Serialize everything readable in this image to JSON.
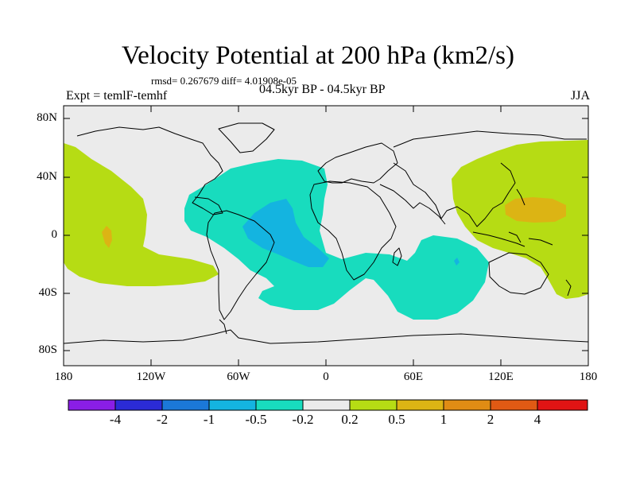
{
  "title": "Velocity Potential at 200 hPa (km2/s)",
  "stats": "rmsd= 0.267679  diff= 4.01908e-05",
  "experiment": "Expt = temlF-temhf",
  "period": "04.5kyr BP - 04.5kyr BP",
  "season": "JJA",
  "map": {
    "lon_ticks": [
      "180",
      "120W",
      "60W",
      "0",
      "60E",
      "120E",
      "180"
    ],
    "lat_ticks": [
      "80N",
      "40N",
      "0",
      "40S",
      "80S"
    ]
  },
  "colorbar": {
    "labels": [
      "-4",
      "-2",
      "-1",
      "-0.5",
      "-0.2",
      "0.2",
      "0.5",
      "1",
      "2",
      "4"
    ],
    "colors": [
      "#8a1ee6",
      "#2b2bd6",
      "#1b78d8",
      "#14b4e0",
      "#18dcbe",
      "#ebebeb",
      "#b6dc14",
      "#dcb414",
      "#e08c14",
      "#e05a14",
      "#e01414"
    ]
  },
  "colors": {
    "ocean": "#ebebeb",
    "neg_weak": "#18dcbe",
    "neg_mid": "#14b4e0",
    "pos_weak": "#b6dc14",
    "pos_mid": "#dcb414"
  }
}
